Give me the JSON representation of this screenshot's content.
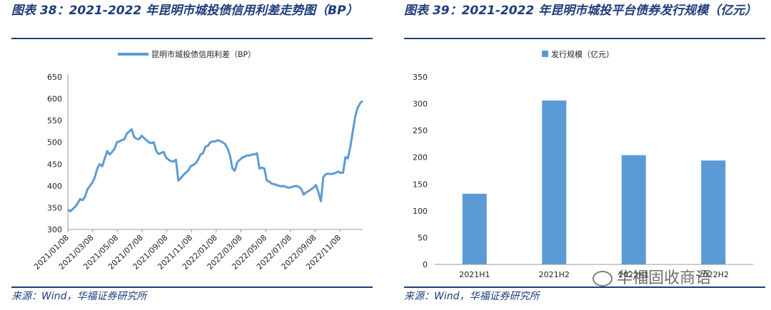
{
  "left": {
    "title": "图表 38：2021-2022 年昆明市城投债信用利差走势图（BP）",
    "source": "来源：Wind，华福证券研究所",
    "chart_data": {
      "type": "line",
      "series": [
        {
          "name": "昆明市城投债信用利差（BP）",
          "color": "#5b9bd5",
          "values": [
            345,
            342,
            347,
            352,
            360,
            370,
            367,
            375,
            392,
            400,
            408,
            420,
            440,
            450,
            445,
            462,
            480,
            472,
            478,
            485,
            500,
            502,
            505,
            507,
            520,
            525,
            530,
            512,
            508,
            507,
            515,
            510,
            505,
            500,
            498,
            500,
            480,
            473,
            476,
            478,
            465,
            460,
            457,
            456,
            460,
            412,
            418,
            425,
            430,
            435,
            445,
            448,
            452,
            460,
            472,
            475,
            490,
            492,
            500,
            502,
            502,
            505,
            503,
            500,
            496,
            486,
            470,
            440,
            435,
            455,
            460,
            465,
            467,
            470,
            470,
            472,
            472,
            475,
            440,
            442,
            440,
            412,
            410,
            405,
            404,
            402,
            400,
            399,
            400,
            397,
            396,
            397,
            399,
            400,
            398,
            393,
            380,
            385,
            388,
            392,
            396,
            402,
            385,
            365,
            420,
            427,
            428,
            427,
            428,
            430,
            433,
            430,
            430,
            466,
            463,
            490,
            525,
            560,
            580,
            590,
            595
          ]
        }
      ],
      "x_labels": [
        "2021/01/08",
        "2021/03/08",
        "2021/05/08",
        "2021/07/08",
        "2021/09/08",
        "2021/11/08",
        "2022/01/08",
        "2022/03/08",
        "2022/05/08",
        "2022/07/08",
        "2022/09/08",
        "2022/11/08"
      ],
      "ylim": [
        300,
        650
      ],
      "yticks": [
        300,
        350,
        400,
        450,
        500,
        550,
        600,
        650
      ]
    }
  },
  "right": {
    "title": "图表 39：2021-2022 年昆明市城投平台债券发行规模（亿元）",
    "source": "来源：Wind，华福证券研究所",
    "chart_data": {
      "type": "bar",
      "categories": [
        "2021H1",
        "2021H2",
        "2022H1",
        "2022H2"
      ],
      "series": [
        {
          "name": "发行规模（亿元）",
          "color": "#5b9bd5",
          "values": [
            132,
            306,
            204,
            194
          ]
        }
      ],
      "ylim": [
        0,
        350
      ],
      "yticks": [
        0,
        50,
        100,
        150,
        200,
        250,
        300,
        350
      ]
    }
  },
  "watermark": "华福固收商语"
}
